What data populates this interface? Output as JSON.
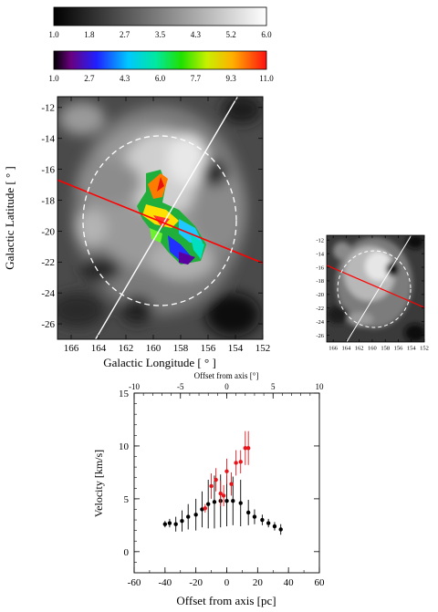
{
  "colorbars": {
    "gray": {
      "ticks": [
        "1.0",
        "1.8",
        "2.7",
        "3.5",
        "4.3",
        "5.2",
        "6.0"
      ]
    },
    "rainbow": {
      "ticks": [
        "1.0",
        "2.7",
        "4.3",
        "6.0",
        "7.7",
        "9.3",
        "11.0"
      ]
    }
  },
  "main_map": {
    "xlabel": "Galactic Longitude [ ° ]",
    "ylabel": "Galactic Latitude [ ° ]",
    "xticks": [
      "166",
      "164",
      "162",
      "160",
      "158",
      "156",
      "154",
      "152"
    ],
    "yticks": [
      "-12",
      "-14",
      "-16",
      "-18",
      "-20",
      "-22",
      "-24",
      "-26"
    ],
    "xlim": [
      167,
      152
    ],
    "ylim": [
      -27,
      -11.3
    ],
    "axis_line_color": "#ff0000",
    "perpendicular_line_color": "#ffffff",
    "dashed_circle_color": "#ffffff"
  },
  "inset_map": {
    "xticks": [
      "166",
      "164",
      "162",
      "160",
      "158",
      "156",
      "154",
      "152"
    ],
    "yticks": [
      "-12",
      "-14",
      "-16",
      "-18",
      "-20",
      "-22",
      "-24",
      "-26"
    ]
  },
  "chart_data": {
    "type": "scatter",
    "xlabel": "Offset from axis [pc]",
    "ylabel": "Velocity [km/s]",
    "top_xlabel": "Offset from axis [°]",
    "xlim": [
      -60,
      60
    ],
    "ylim": [
      -2,
      15
    ],
    "top_xlim": [
      -10,
      10
    ],
    "xticks": [
      "-60",
      "-40",
      "-20",
      "0",
      "20",
      "40",
      "60"
    ],
    "yticks": [
      "0",
      "5",
      "10",
      "15"
    ],
    "top_xticks": [
      "-10",
      "-5",
      "0",
      "5",
      "10"
    ],
    "series": [
      {
        "color": "#000000",
        "points": [
          {
            "x": -40,
            "y": 2.6,
            "err": 0.3
          },
          {
            "x": -37,
            "y": 2.7,
            "err": 0.4
          },
          {
            "x": -33,
            "y": 2.6,
            "err": 0.7
          },
          {
            "x": -29,
            "y": 2.9,
            "err": 1.0
          },
          {
            "x": -25,
            "y": 3.3,
            "err": 1.2
          },
          {
            "x": -20,
            "y": 3.5,
            "err": 1.5
          },
          {
            "x": -16,
            "y": 4.0,
            "err": 1.7
          },
          {
            "x": -12,
            "y": 4.5,
            "err": 2.3
          },
          {
            "x": -8,
            "y": 4.7,
            "err": 2.5
          },
          {
            "x": -4,
            "y": 4.8,
            "err": 2.5
          },
          {
            "x": 0,
            "y": 4.8,
            "err": 2.4
          },
          {
            "x": 4,
            "y": 4.8,
            "err": 2.3
          },
          {
            "x": 9,
            "y": 4.6,
            "err": 2.2
          },
          {
            "x": 14,
            "y": 3.7,
            "err": 1.2
          },
          {
            "x": 18,
            "y": 3.3,
            "err": 0.7
          },
          {
            "x": 23,
            "y": 3.0,
            "err": 0.5
          },
          {
            "x": 27,
            "y": 2.7,
            "err": 0.4
          },
          {
            "x": 31,
            "y": 2.4,
            "err": 0.4
          },
          {
            "x": 35,
            "y": 2.1,
            "err": 0.5
          }
        ]
      },
      {
        "color": "#e8141a",
        "points": [
          {
            "x": -14,
            "y": 4.1,
            "err": 0.4
          },
          {
            "x": -10,
            "y": 6.2,
            "err": 1.2
          },
          {
            "x": -7,
            "y": 6.8,
            "err": 1.1
          },
          {
            "x": -4,
            "y": 5.5,
            "err": 1.2
          },
          {
            "x": -2,
            "y": 5.3,
            "err": 1.0
          },
          {
            "x": 0,
            "y": 7.6,
            "err": 1.2
          },
          {
            "x": 3,
            "y": 6.4,
            "err": 1.1
          },
          {
            "x": 6,
            "y": 8.4,
            "err": 1.2
          },
          {
            "x": 9,
            "y": 8.5,
            "err": 1.1
          },
          {
            "x": 12,
            "y": 9.8,
            "err": 1.6
          },
          {
            "x": 14,
            "y": 9.8,
            "err": 1.6
          }
        ]
      }
    ]
  }
}
